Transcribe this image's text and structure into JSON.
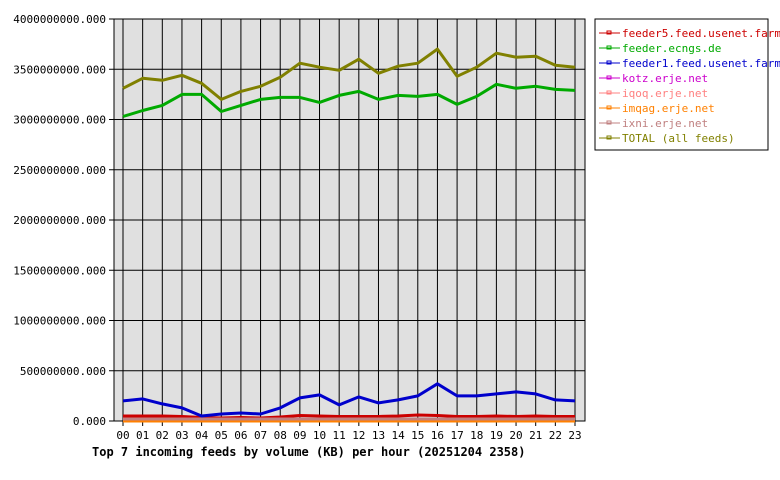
{
  "chart_data": {
    "type": "line",
    "title": "Top 7 incoming feeds by volume (KB) per hour (20251204 2358)",
    "xlabel": "",
    "ylabel": "",
    "ylim": [
      0,
      4000000000
    ],
    "grid": true,
    "legend_position": "right",
    "y_ticks": [
      "0.000",
      "500000000.000",
      "1000000000.000",
      "1500000000.000",
      "2000000000.000",
      "2500000000.000",
      "3000000000.000",
      "3500000000.000",
      "4000000000.000"
    ],
    "categories": [
      "00",
      "01",
      "02",
      "03",
      "04",
      "05",
      "06",
      "07",
      "08",
      "09",
      "10",
      "11",
      "12",
      "13",
      "14",
      "15",
      "16",
      "17",
      "18",
      "19",
      "20",
      "21",
      "22",
      "23"
    ],
    "series": [
      {
        "name": "feeder5.feed.usenet.farm",
        "color": "#cc0000",
        "values": [
          50000000,
          50000000,
          50000000,
          45000000,
          35000000,
          30000000,
          35000000,
          30000000,
          40000000,
          55000000,
          50000000,
          45000000,
          45000000,
          45000000,
          50000000,
          60000000,
          55000000,
          45000000,
          45000000,
          50000000,
          45000000,
          50000000,
          45000000,
          45000000
        ]
      },
      {
        "name": "feeder.ecngs.de",
        "color": "#00aa00",
        "values": [
          3030000000,
          3090000000,
          3140000000,
          3250000000,
          3250000000,
          3080000000,
          3140000000,
          3200000000,
          3220000000,
          3220000000,
          3170000000,
          3240000000,
          3280000000,
          3200000000,
          3240000000,
          3230000000,
          3250000000,
          3150000000,
          3230000000,
          3350000000,
          3310000000,
          3330000000,
          3300000000,
          3290000000
        ]
      },
      {
        "name": "feeder1.feed.usenet.farm",
        "color": "#0000cc",
        "values": [
          200000000,
          220000000,
          170000000,
          130000000,
          50000000,
          70000000,
          80000000,
          70000000,
          130000000,
          230000000,
          260000000,
          160000000,
          240000000,
          180000000,
          210000000,
          250000000,
          370000000,
          250000000,
          250000000,
          270000000,
          290000000,
          270000000,
          210000000,
          200000000
        ]
      },
      {
        "name": "kotz.erje.net",
        "color": "#cc00cc",
        "values": [
          0,
          0,
          0,
          0,
          0,
          0,
          0,
          0,
          0,
          0,
          0,
          0,
          0,
          0,
          0,
          0,
          0,
          0,
          0,
          0,
          0,
          0,
          0,
          0
        ]
      },
      {
        "name": "iqoq.erje.net",
        "color": "#ff8080",
        "values": [
          0,
          0,
          0,
          0,
          0,
          0,
          0,
          0,
          0,
          0,
          0,
          0,
          0,
          0,
          0,
          0,
          0,
          0,
          0,
          0,
          0,
          0,
          0,
          0
        ]
      },
      {
        "name": "imqag.erje.net",
        "color": "#ff8000",
        "values": [
          0,
          0,
          0,
          0,
          0,
          0,
          0,
          0,
          0,
          0,
          0,
          0,
          0,
          0,
          0,
          0,
          0,
          0,
          0,
          0,
          0,
          0,
          0,
          0
        ]
      },
      {
        "name": "ixni.erje.net",
        "color": "#c08080",
        "values": [
          20000000,
          20000000,
          20000000,
          20000000,
          20000000,
          20000000,
          20000000,
          20000000,
          20000000,
          20000000,
          20000000,
          20000000,
          20000000,
          20000000,
          20000000,
          20000000,
          20000000,
          20000000,
          20000000,
          20000000,
          20000000,
          20000000,
          20000000,
          20000000
        ]
      },
      {
        "name": "TOTAL (all feeds)",
        "color": "#808000",
        "values": [
          3310000000,
          3410000000,
          3390000000,
          3440000000,
          3360000000,
          3200000000,
          3280000000,
          3330000000,
          3420000000,
          3560000000,
          3520000000,
          3490000000,
          3600000000,
          3460000000,
          3530000000,
          3560000000,
          3700000000,
          3430000000,
          3520000000,
          3660000000,
          3620000000,
          3630000000,
          3540000000,
          3520000000
        ]
      }
    ]
  }
}
